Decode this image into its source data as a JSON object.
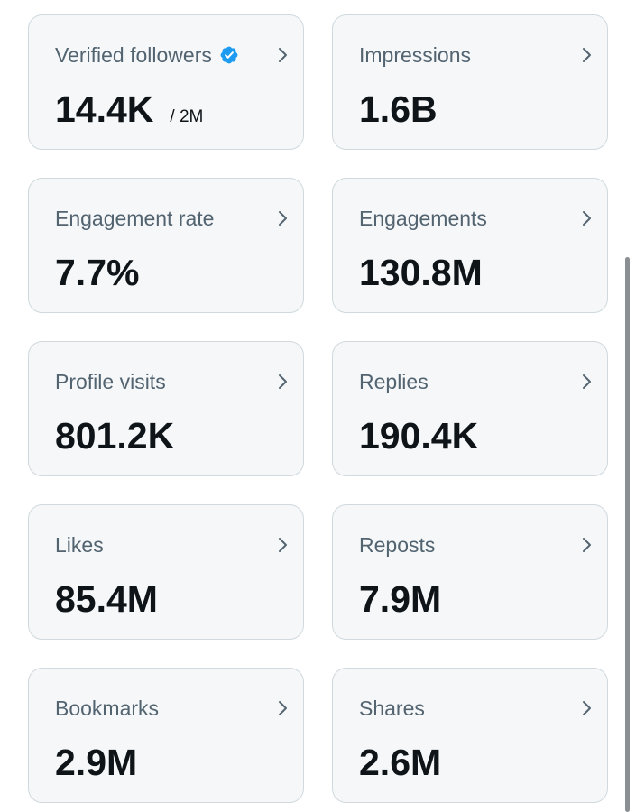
{
  "metrics": [
    {
      "label": "Verified followers",
      "value": "14.4K",
      "sub_value": "/ 2M",
      "verified_badge": true
    },
    {
      "label": "Impressions",
      "value": "1.6B"
    },
    {
      "label": "Engagement rate",
      "value": "7.7%"
    },
    {
      "label": "Engagements",
      "value": "130.8M"
    },
    {
      "label": "Profile visits",
      "value": "801.2K"
    },
    {
      "label": "Replies",
      "value": "190.4K"
    },
    {
      "label": "Likes",
      "value": "85.4M"
    },
    {
      "label": "Reposts",
      "value": "7.9M"
    },
    {
      "label": "Bookmarks",
      "value": "2.9M"
    },
    {
      "label": "Shares",
      "value": "2.6M"
    }
  ],
  "icons": {
    "verified": "verified-badge-icon",
    "chevron": "chevron-right-icon"
  },
  "colors": {
    "card_background": "#f5f7f8",
    "card_border": "#cfd9de",
    "label_text": "#536471",
    "value_text": "#0f1419",
    "verified_blue": "#1d9bf0",
    "chevron": "#536471"
  }
}
